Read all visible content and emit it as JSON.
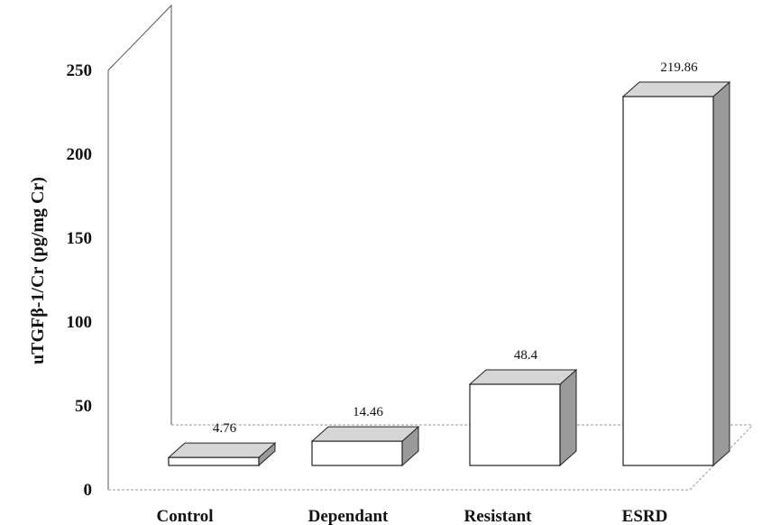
{
  "chart_data": {
    "type": "bar",
    "style": "3d",
    "title": "",
    "xlabel": "",
    "ylabel": "uTGFβ-1/Cr (pg/mg Cr)",
    "ylim": [
      0,
      250
    ],
    "yticks": [
      0,
      50,
      100,
      150,
      200,
      250
    ],
    "categories": [
      "Control",
      "Dependant",
      "Resistant",
      "ESRD"
    ],
    "values": [
      4.76,
      14.46,
      48.4,
      219.86
    ],
    "data_labels": [
      "4.76",
      "14.46",
      "48.4",
      "219.86"
    ],
    "grid": false,
    "legend": "none",
    "colors": {
      "bar_face": "#ffffff",
      "bar_side": "#9a9a9a",
      "bar_top": "#d6d6d6",
      "outline": "#222222",
      "wall": "#555555",
      "floor": "#9a9a9a"
    }
  }
}
